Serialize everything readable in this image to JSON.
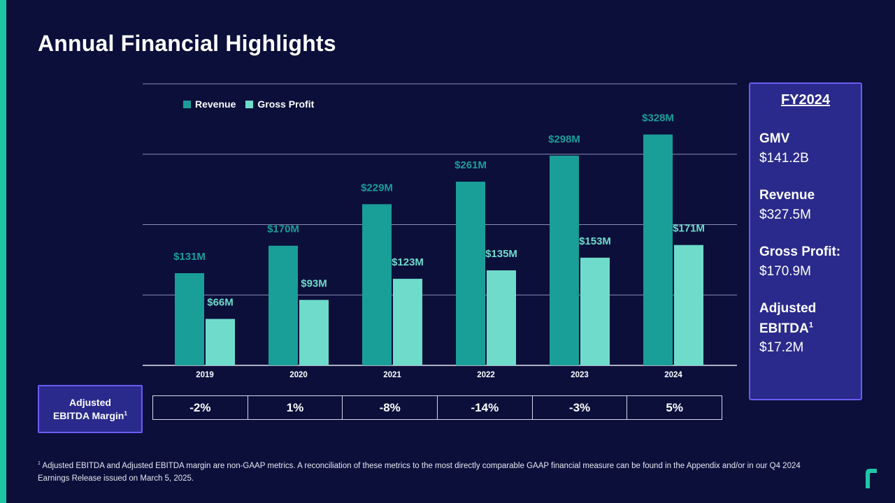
{
  "title": "Annual Financial Highlights",
  "colors": {
    "revenue": "#1a9e98",
    "gross_profit": "#6fdccb",
    "accent": "#1fc6a6",
    "panel": "#2a2a8c",
    "panel_border": "#6a5cf2"
  },
  "legend": {
    "revenue": "Revenue",
    "gross_profit": "Gross Profit"
  },
  "chart_data": {
    "type": "bar",
    "categories": [
      "2019",
      "2020",
      "2021",
      "2022",
      "2023",
      "2024"
    ],
    "series": [
      {
        "name": "Revenue",
        "values": [
          131,
          170,
          229,
          261,
          298,
          328
        ],
        "labels": [
          "$131M",
          "$170M",
          "$229M",
          "$261M",
          "$298M",
          "$328M"
        ]
      },
      {
        "name": "Gross Profit",
        "values": [
          66,
          93,
          123,
          135,
          153,
          171
        ],
        "labels": [
          "$66M",
          "$93M",
          "$123M",
          "$135M",
          "$153M",
          "$171M"
        ]
      }
    ],
    "ylim": [
      0,
      400
    ],
    "gridlines": [
      0,
      100,
      200,
      300,
      400
    ],
    "title": "",
    "xlabel": "",
    "ylabel": ""
  },
  "fy_panel": {
    "title": "FY2024",
    "gmv_label": "GMV",
    "gmv_value": "$141.2B",
    "revenue_label": "Revenue",
    "revenue_value": "$327.5M",
    "gross_profit_label": "Gross Profit:",
    "gross_profit_value": "$170.9M",
    "ebitda_label_1": "Adjusted",
    "ebitda_label_2": "EBITDA",
    "ebitda_sup": "1",
    "ebitda_value": "$17.2M"
  },
  "ebitda_margin": {
    "label_1": "Adjusted",
    "label_2": "EBITDA Margin",
    "label_sup": "1",
    "values": [
      "-2%",
      "1%",
      "-8%",
      "-14%",
      "-3%",
      "5%"
    ]
  },
  "footnote": {
    "sup": "1",
    "text": "Adjusted EBITDA and Adjusted EBITDA margin are non-GAAP metrics. A reconciliation of these metrics to the most directly comparable GAAP financial measure can be found in the Appendix and/or in our Q4 2024 Earnings Release issued on March 5, 2025."
  }
}
